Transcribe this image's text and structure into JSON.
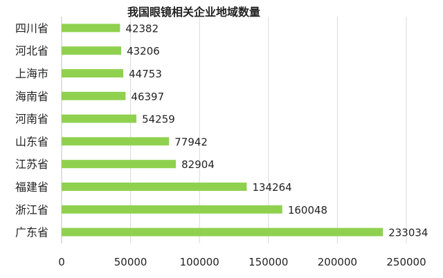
{
  "chart_data": {
    "type": "bar",
    "orientation": "horizontal",
    "title": "我国眼镜相关企业地域数量",
    "categories": [
      "四川省",
      "河北省",
      "上海市",
      "海南省",
      "河南省",
      "山东省",
      "江苏省",
      "福建省",
      "浙江省",
      "广东省"
    ],
    "values": [
      42382,
      43206,
      44753,
      46397,
      54259,
      77942,
      82904,
      134264,
      160048,
      233034
    ],
    "value_labels": [
      "42382",
      "43206",
      "44753",
      "46397",
      "54259",
      "77942",
      "82904",
      "134264",
      "160048",
      "233034"
    ],
    "xlim": [
      0,
      250000
    ],
    "x_ticks": [
      "0",
      "50000",
      "100000",
      "150000",
      "200000",
      "250000"
    ],
    "grid": "vertical",
    "legend": "none",
    "colors": {
      "bar": "#8fd14f",
      "grid": "#d9d9d9",
      "axis": "#bfbfbf",
      "text": "#222222"
    }
  }
}
